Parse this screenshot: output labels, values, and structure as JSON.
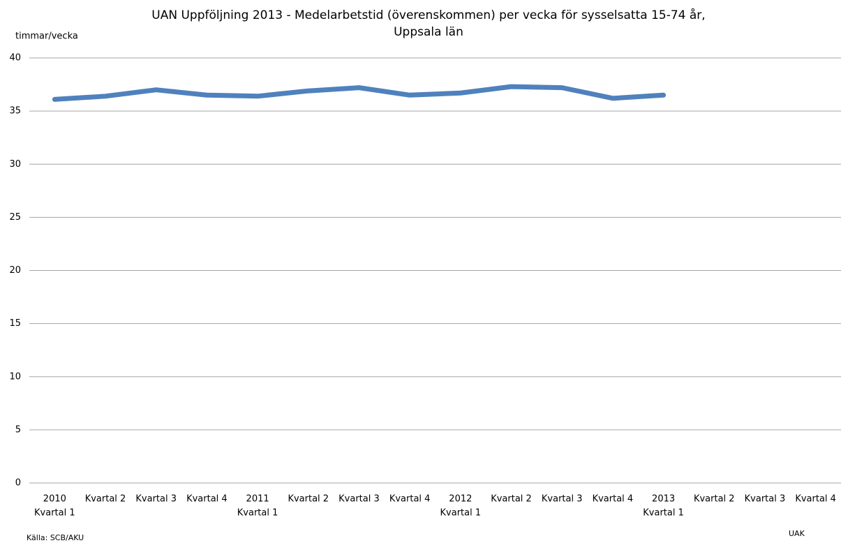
{
  "chart_data": {
    "type": "line",
    "title": [
      "UAN Uppföljning 2013 - Medelarbetstid (överenskommen) per vecka för sysselsatta 15-74 år,",
      "Uppsala län"
    ],
    "y_label": "timmar/vecka",
    "source": "Källa: SCB/AKU",
    "footer": "UAK",
    "categories": [
      [
        "2010",
        "Kvartal 1"
      ],
      [
        "Kvartal 2"
      ],
      [
        "Kvartal 3"
      ],
      [
        "Kvartal 4"
      ],
      [
        "2011",
        "Kvartal 1"
      ],
      [
        "Kvartal 2"
      ],
      [
        "Kvartal 3"
      ],
      [
        "Kvartal 4"
      ],
      [
        "2012",
        "Kvartal 1"
      ],
      [
        "Kvartal 2"
      ],
      [
        "Kvartal 3"
      ],
      [
        "Kvartal 4"
      ],
      [
        "2013",
        "Kvartal 1"
      ],
      [
        "Kvartal 2"
      ],
      [
        "Kvartal 3"
      ],
      [
        "Kvartal 4"
      ]
    ],
    "values": [
      36.1,
      36.4,
      37.0,
      36.5,
      36.4,
      36.9,
      37.2,
      36.5,
      36.7,
      37.3,
      37.2,
      36.2,
      36.5,
      null,
      null,
      null
    ],
    "color": "#4f81bd",
    "ylim": [
      0,
      40
    ],
    "yticks": [
      0,
      5,
      10,
      15,
      20,
      25,
      30,
      35,
      40
    ],
    "grid": true
  }
}
